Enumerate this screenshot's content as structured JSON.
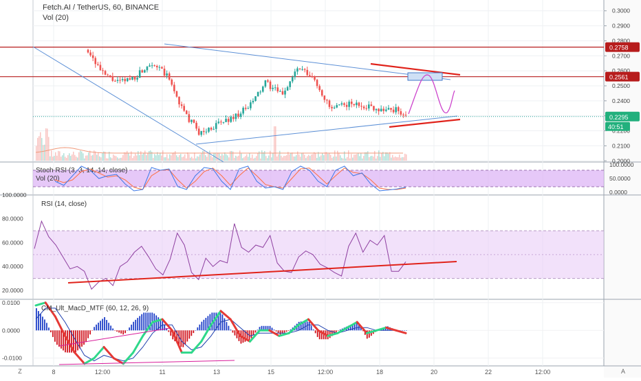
{
  "header": {
    "symbol_title": "Fetch.AI / TetherUS, 60, BINANCE",
    "volume_label": "Vol (20)"
  },
  "corner": {
    "left": "Z",
    "right": "A"
  },
  "colors": {
    "up": "#26a69a",
    "down": "#ef5350",
    "hline": "#b71c1c",
    "trend": "#5b8fd6",
    "red_line": "#e0221a",
    "projection": "#cc44cc",
    "rsi": "#8e3fa0",
    "rsi_band": "#e8c8f5",
    "stoch_band": "#ddb5f5",
    "stoch_k": "#3b78e7",
    "stoch_d": "#ff6f40",
    "macd_fast": "#e53935",
    "macd_slow": "#2fd88a",
    "macd_signal": "#1e3fae",
    "hist_pos": "#1e3fc8",
    "hist_neg": "#d0111b",
    "current_price_badge": "#22b07d",
    "level_badge": "#b71c1c"
  },
  "chart_data": [
    {
      "type": "candlestick",
      "pane": "price",
      "title": "Fetch.AI / TetherUS, 60, BINANCE",
      "series": [
        {
          "name": "",
          "kind": "price_path",
          "x": [
            0.0,
            0.3,
            0.6,
            0.9,
            1.2,
            1.5,
            1.8,
            2.1,
            2.4,
            2.7,
            3.0,
            3.3,
            3.6,
            3.9,
            4.2,
            4.5,
            4.8,
            5.1,
            5.4,
            5.7,
            6.0,
            6.3,
            6.6,
            6.9,
            7.2,
            7.5,
            7.8,
            8.1,
            8.4,
            8.7,
            9.0,
            9.3,
            9.6,
            9.9,
            10.2
          ],
          "y": [
            0.305,
            0.287,
            0.276,
            0.258,
            0.252,
            0.256,
            0.266,
            0.256,
            0.232,
            0.218,
            0.224,
            0.229,
            0.236,
            0.252,
            0.244,
            0.262,
            0.254,
            0.234,
            0.238,
            0.237,
            0.2345,
            0.234,
            0.228,
            0.232,
            0.232,
            0.234,
            0.237,
            0.233,
            0.229,
            0.2295,
            0.242,
            0.252,
            0.256,
            0.236,
            0.243
          ]
        }
      ],
      "x_ticks": [
        {
          "x": 0.0,
          "label": "8"
        },
        {
          "x": 0.9,
          "label": "12:00"
        },
        {
          "x": 2.0,
          "label": "11"
        },
        {
          "x": 3.0,
          "label": "13"
        },
        {
          "x": 4.0,
          "label": "15"
        },
        {
          "x": 5.0,
          "label": "12:00"
        },
        {
          "x": 6.0,
          "label": "18"
        },
        {
          "x": 7.0,
          "label": "20"
        },
        {
          "x": 8.0,
          "label": "22"
        },
        {
          "x": 9.0,
          "label": "12:00"
        }
      ],
      "y_ticks": [
        "0.3000",
        "0.2900",
        "0.2800",
        "0.2700",
        "0.2600",
        "0.2500",
        "0.2400",
        "0.2300",
        "0.2200",
        "0.2100",
        "0.2000"
      ],
      "ylim": [
        0.1992,
        0.3072
      ],
      "horizontal_levels": [
        0.2758,
        0.2561
      ],
      "level_labels": [
        "0.2758",
        "0.2561"
      ],
      "current_price": "0.2295",
      "countdown": "40:51"
    },
    {
      "type": "line",
      "pane": "stoch_rsi",
      "title": "Stoch RSI (3, 3, 14, 14, close)",
      "subtitle": "Vol (20)",
      "series": [
        {
          "name": "K",
          "values": [
            40,
            25,
            60,
            95,
            80,
            50,
            60,
            65,
            30,
            5,
            10,
            90,
            80,
            85,
            20,
            10,
            60,
            90,
            85,
            40,
            10,
            85,
            95,
            40,
            15,
            20,
            10,
            75,
            95,
            80,
            40,
            20,
            80,
            95,
            60,
            70,
            30,
            5,
            8,
            12,
            18
          ]
        },
        {
          "name": "D",
          "values": [
            45,
            35,
            45,
            75,
            85,
            70,
            55,
            60,
            45,
            18,
            10,
            60,
            80,
            82,
            45,
            15,
            40,
            75,
            88,
            60,
            25,
            60,
            88,
            60,
            28,
            20,
            15,
            50,
            85,
            88,
            60,
            30,
            60,
            88,
            72,
            68,
            45,
            15,
            10,
            10,
            15
          ]
        }
      ],
      "ylim": [
        0,
        100
      ],
      "y_ticks": [
        "100.0000",
        "50.0000",
        "0.0000"
      ],
      "band": [
        20,
        80
      ]
    },
    {
      "type": "line",
      "pane": "rsi",
      "title": "RSI (14, close)",
      "series": [
        {
          "name": "RSI",
          "values": [
            55,
            78,
            65,
            58,
            48,
            38,
            40,
            36,
            21,
            27,
            30,
            24,
            40,
            44,
            52,
            57,
            48,
            38,
            33,
            46,
            68,
            58,
            35,
            29,
            47,
            40,
            45,
            43,
            76,
            56,
            52,
            58,
            56,
            66,
            43,
            36,
            35,
            48,
            53,
            50,
            42,
            39,
            35,
            32,
            57,
            68,
            52,
            62,
            58,
            66,
            36,
            36,
            44
          ]
        }
      ],
      "ylim": [
        12.5,
        100
      ],
      "y_ticks": [
        "100.0000",
        "80.0000",
        "60.0000",
        "40.0000",
        "20.0000"
      ],
      "band": [
        30,
        70
      ]
    },
    {
      "type": "line",
      "pane": "macd",
      "title": "CM_Ult_MacD_MTF (60, 12, 26, 9)",
      "series": [
        {
          "name": "MACD",
          "values": [
            0.009,
            0.01,
            0.005,
            -0.002,
            -0.008,
            -0.012,
            -0.01,
            -0.006,
            -0.01,
            -0.012,
            -0.008,
            -0.002,
            0.003,
            0.004,
            0.0,
            -0.008,
            -0.008,
            -0.004,
            0.002,
            0.007,
            0.004,
            -0.002,
            -0.004,
            0.0,
            0.0,
            -0.002,
            -0.001,
            0.002,
            0.004,
            0.0,
            -0.002,
            -0.001,
            0.001,
            0.003,
            -0.001,
            0.0,
            0.001,
            0.0,
            -0.001
          ]
        },
        {
          "name": "Signal",
          "values": [
            0.004,
            0.008,
            0.008,
            0.003,
            -0.003,
            -0.009,
            -0.011,
            -0.009,
            -0.01,
            -0.011,
            -0.01,
            -0.006,
            -0.001,
            0.002,
            0.002,
            -0.004,
            -0.007,
            -0.006,
            -0.002,
            0.003,
            0.004,
            0.001,
            -0.002,
            -0.001,
            -0.001,
            -0.001,
            -0.001,
            0.0,
            0.002,
            0.002,
            0.0,
            -0.001,
            0.0,
            0.001,
            0.001,
            0.0,
            0.0,
            0.0,
            -0.001
          ]
        }
      ],
      "ylim": [
        -0.0128,
        0.0112
      ],
      "y_ticks": [
        "0.0100",
        "0.0000",
        "-0.0100"
      ]
    }
  ]
}
